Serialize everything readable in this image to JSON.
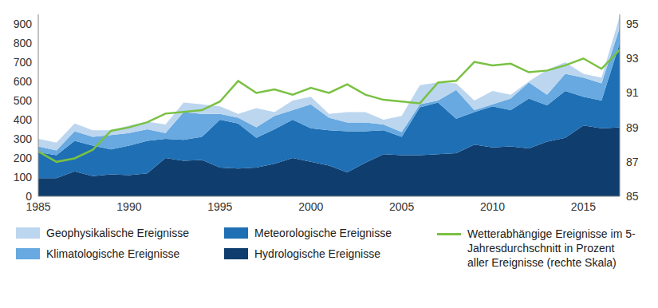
{
  "chart_data": {
    "type": "area",
    "stacked": true,
    "grid": false,
    "x": [
      1985,
      1986,
      1987,
      1988,
      1989,
      1990,
      1991,
      1992,
      1993,
      1994,
      1995,
      1996,
      1997,
      1998,
      1999,
      2000,
      2001,
      2002,
      2003,
      2004,
      2005,
      2006,
      2007,
      2008,
      2009,
      2010,
      2011,
      2012,
      2013,
      2014,
      2015,
      2016,
      2017
    ],
    "xlim": [
      1985,
      2017
    ],
    "xticks": [
      1985,
      1990,
      1995,
      2000,
      2005,
      2010,
      2015
    ],
    "xtick_labels_shown": null,
    "ylim": [
      0,
      950
    ],
    "yticks": [
      0,
      100,
      200,
      300,
      400,
      500,
      600,
      700,
      800,
      900
    ],
    "y2lim": [
      85,
      95.56
    ],
    "y2ticks": [
      85,
      87,
      89,
      91,
      93,
      95
    ],
    "series": [
      {
        "name": "Hydrologische Ereignisse",
        "color": "#0f3e6e",
        "values": [
          95,
          95,
          130,
          105,
          115,
          110,
          120,
          200,
          185,
          190,
          150,
          145,
          150,
          170,
          200,
          180,
          160,
          125,
          175,
          220,
          215,
          215,
          220,
          225,
          270,
          255,
          260,
          250,
          285,
          305,
          370,
          355,
          360
        ]
      },
      {
        "name": "Meteorologische Ereignisse",
        "color": "#1f6fb4",
        "values": [
          135,
          120,
          160,
          160,
          130,
          155,
          170,
          100,
          110,
          120,
          250,
          235,
          155,
          180,
          200,
          175,
          185,
          215,
          165,
          125,
          95,
          250,
          270,
          180,
          170,
          215,
          190,
          260,
          190,
          245,
          150,
          145,
          440
        ]
      },
      {
        "name": "Klimatologische Ereignisse",
        "color": "#67a9e0",
        "values": [
          30,
          25,
          50,
          45,
          75,
          65,
          60,
          30,
          145,
          120,
          30,
          30,
          55,
          70,
          50,
          125,
          65,
          45,
          45,
          30,
          25,
          15,
          10,
          150,
          10,
          10,
          60,
          85,
          55,
          90,
          100,
          90,
          80
        ]
      },
      {
        "name": "Geophysikalische Ereignisse",
        "color": "#bcd6ef",
        "values": [
          40,
          40,
          40,
          35,
          25,
          40,
          40,
          45,
          50,
          50,
          40,
          20,
          100,
          20,
          50,
          40,
          20,
          55,
          55,
          25,
          85,
          100,
          95,
          35,
          50,
          70,
          20,
          5,
          130,
          60,
          20,
          30,
          60
        ]
      },
      {
        "name": "Wetterabhängige Ereignisse im 5-Jahresdurchschnitt in Prozent aller Ereignisse (rechte Skala)",
        "type": "line",
        "axis": "y2",
        "color": "#7ac143",
        "values": [
          87.6,
          87.0,
          87.2,
          87.7,
          88.8,
          89.0,
          89.3,
          89.8,
          89.9,
          90.0,
          90.5,
          91.7,
          91.0,
          91.2,
          90.9,
          91.3,
          91.0,
          91.5,
          90.9,
          90.6,
          90.5,
          90.4,
          91.6,
          91.7,
          92.8,
          92.6,
          92.7,
          92.2,
          92.3,
          92.6,
          93.0,
          92.4,
          93.5
        ]
      }
    ]
  }
}
